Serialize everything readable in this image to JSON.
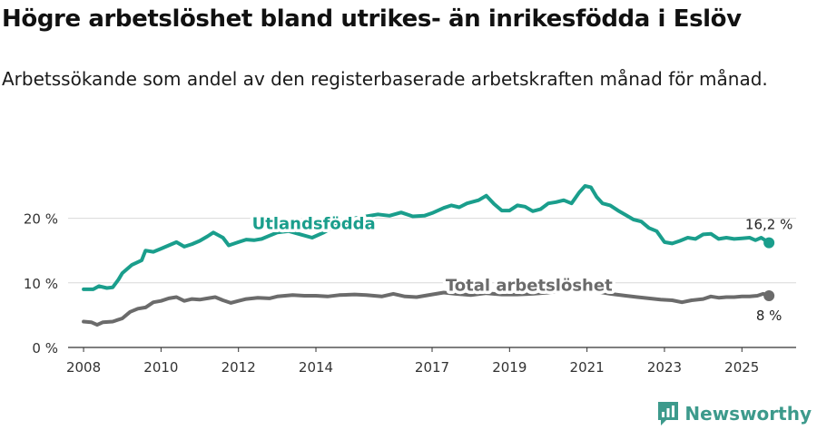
{
  "title": "Högre arbetslöshet bland utrikes- än inrikesfödda i Eslöv",
  "subtitle": "Arbetssökande som andel av den registerbaserade arbetskraften månad för månad.",
  "brand": {
    "name": "Newsworthy",
    "color": "#3d9a8c"
  },
  "chart_data": {
    "type": "line",
    "x_range": [
      2007.6,
      2026.4
    ],
    "ylim": [
      0,
      25
    ],
    "y_ticks": [
      {
        "value": 0,
        "label": "0 %"
      },
      {
        "value": 10,
        "label": "10 %"
      },
      {
        "value": 20,
        "label": "20 %"
      }
    ],
    "x_ticks": [
      {
        "value": 2008,
        "label": "2008"
      },
      {
        "value": 2010,
        "label": "2010"
      },
      {
        "value": 2012,
        "label": "2012"
      },
      {
        "value": 2014,
        "label": "2014"
      },
      {
        "value": 2017,
        "label": "2017"
      },
      {
        "value": 2019,
        "label": "2019"
      },
      {
        "value": 2021,
        "label": "2021"
      },
      {
        "value": 2023,
        "label": "2023"
      },
      {
        "value": 2025,
        "label": "2025"
      }
    ],
    "grid": true,
    "series": [
      {
        "name": "Utlandsfödda",
        "color": "#1a9e8c",
        "end_label": "16,2 %",
        "points": [
          [
            2008.0,
            9.0
          ],
          [
            2008.25,
            9.0
          ],
          [
            2008.4,
            9.5
          ],
          [
            2008.6,
            9.2
          ],
          [
            2008.75,
            9.3
          ],
          [
            2008.9,
            10.5
          ],
          [
            2009.0,
            11.5
          ],
          [
            2009.25,
            12.8
          ],
          [
            2009.5,
            13.5
          ],
          [
            2009.6,
            15.0
          ],
          [
            2009.8,
            14.8
          ],
          [
            2010.0,
            15.3
          ],
          [
            2010.2,
            15.8
          ],
          [
            2010.4,
            16.3
          ],
          [
            2010.6,
            15.6
          ],
          [
            2010.8,
            16.0
          ],
          [
            2011.0,
            16.5
          ],
          [
            2011.2,
            17.2
          ],
          [
            2011.35,
            17.8
          ],
          [
            2011.6,
            17.0
          ],
          [
            2011.75,
            15.8
          ],
          [
            2012.0,
            16.3
          ],
          [
            2012.2,
            16.7
          ],
          [
            2012.4,
            16.6
          ],
          [
            2012.6,
            16.8
          ],
          [
            2012.8,
            17.3
          ],
          [
            2013.0,
            17.8
          ],
          [
            2013.3,
            18.0
          ],
          [
            2013.6,
            17.5
          ],
          [
            2013.9,
            17.0
          ],
          [
            2014.2,
            17.8
          ],
          [
            2014.5,
            18.8
          ],
          [
            2014.8,
            19.3
          ],
          [
            2015.0,
            20.0
          ],
          [
            2015.3,
            20.3
          ],
          [
            2015.6,
            20.6
          ],
          [
            2015.9,
            20.4
          ],
          [
            2016.2,
            20.9
          ],
          [
            2016.5,
            20.3
          ],
          [
            2016.8,
            20.4
          ],
          [
            2017.0,
            20.8
          ],
          [
            2017.3,
            21.6
          ],
          [
            2017.5,
            22.0
          ],
          [
            2017.7,
            21.7
          ],
          [
            2017.9,
            22.3
          ],
          [
            2018.2,
            22.8
          ],
          [
            2018.4,
            23.5
          ],
          [
            2018.6,
            22.2
          ],
          [
            2018.8,
            21.2
          ],
          [
            2019.0,
            21.2
          ],
          [
            2019.2,
            22.0
          ],
          [
            2019.4,
            21.8
          ],
          [
            2019.6,
            21.1
          ],
          [
            2019.8,
            21.4
          ],
          [
            2020.0,
            22.3
          ],
          [
            2020.2,
            22.5
          ],
          [
            2020.4,
            22.8
          ],
          [
            2020.6,
            22.3
          ],
          [
            2020.8,
            24.0
          ],
          [
            2020.95,
            25.0
          ],
          [
            2021.1,
            24.8
          ],
          [
            2021.25,
            23.3
          ],
          [
            2021.4,
            22.3
          ],
          [
            2021.6,
            22.0
          ],
          [
            2021.8,
            21.2
          ],
          [
            2022.0,
            20.5
          ],
          [
            2022.2,
            19.8
          ],
          [
            2022.4,
            19.5
          ],
          [
            2022.6,
            18.5
          ],
          [
            2022.8,
            18.0
          ],
          [
            2023.0,
            16.3
          ],
          [
            2023.2,
            16.1
          ],
          [
            2023.4,
            16.5
          ],
          [
            2023.6,
            17.0
          ],
          [
            2023.8,
            16.8
          ],
          [
            2024.0,
            17.5
          ],
          [
            2024.2,
            17.6
          ],
          [
            2024.4,
            16.8
          ],
          [
            2024.6,
            17.0
          ],
          [
            2024.8,
            16.8
          ],
          [
            2025.0,
            16.9
          ],
          [
            2025.2,
            17.0
          ],
          [
            2025.35,
            16.6
          ],
          [
            2025.5,
            17.0
          ],
          [
            2025.7,
            16.2
          ]
        ]
      },
      {
        "name": "Total arbetslöshet",
        "color": "#6b6b6b",
        "end_label": "8 %",
        "points": [
          [
            2008.0,
            4.0
          ],
          [
            2008.2,
            3.9
          ],
          [
            2008.35,
            3.5
          ],
          [
            2008.5,
            3.9
          ],
          [
            2008.75,
            4.0
          ],
          [
            2009.0,
            4.5
          ],
          [
            2009.2,
            5.5
          ],
          [
            2009.4,
            6.0
          ],
          [
            2009.6,
            6.2
          ],
          [
            2009.8,
            7.0
          ],
          [
            2010.0,
            7.2
          ],
          [
            2010.2,
            7.6
          ],
          [
            2010.4,
            7.8
          ],
          [
            2010.6,
            7.2
          ],
          [
            2010.8,
            7.5
          ],
          [
            2011.0,
            7.4
          ],
          [
            2011.2,
            7.6
          ],
          [
            2011.4,
            7.8
          ],
          [
            2011.6,
            7.3
          ],
          [
            2011.8,
            6.9
          ],
          [
            2012.0,
            7.2
          ],
          [
            2012.2,
            7.5
          ],
          [
            2012.5,
            7.7
          ],
          [
            2012.8,
            7.6
          ],
          [
            2013.0,
            7.9
          ],
          [
            2013.4,
            8.1
          ],
          [
            2013.7,
            8.0
          ],
          [
            2014.0,
            8.0
          ],
          [
            2014.3,
            7.9
          ],
          [
            2014.6,
            8.1
          ],
          [
            2015.0,
            8.2
          ],
          [
            2015.3,
            8.1
          ],
          [
            2015.7,
            7.9
          ],
          [
            2016.0,
            8.3
          ],
          [
            2016.3,
            7.9
          ],
          [
            2016.6,
            7.8
          ],
          [
            2017.0,
            8.2
          ],
          [
            2017.3,
            8.5
          ],
          [
            2017.6,
            8.3
          ],
          [
            2018.0,
            8.1
          ],
          [
            2018.4,
            8.4
          ],
          [
            2018.8,
            8.2
          ],
          [
            2019.2,
            8.2
          ],
          [
            2019.6,
            8.3
          ],
          [
            2020.0,
            8.5
          ],
          [
            2020.4,
            8.8
          ],
          [
            2020.8,
            8.9
          ],
          [
            2021.0,
            9.0
          ],
          [
            2021.3,
            8.6
          ],
          [
            2021.6,
            8.3
          ],
          [
            2022.0,
            8.0
          ],
          [
            2022.3,
            7.8
          ],
          [
            2022.6,
            7.6
          ],
          [
            2022.9,
            7.4
          ],
          [
            2023.2,
            7.3
          ],
          [
            2023.45,
            7.0
          ],
          [
            2023.7,
            7.3
          ],
          [
            2024.0,
            7.5
          ],
          [
            2024.2,
            7.9
          ],
          [
            2024.4,
            7.7
          ],
          [
            2024.6,
            7.8
          ],
          [
            2024.8,
            7.8
          ],
          [
            2025.0,
            7.9
          ],
          [
            2025.2,
            7.9
          ],
          [
            2025.4,
            8.0
          ],
          [
            2025.55,
            8.3
          ],
          [
            2025.7,
            8.0
          ]
        ]
      }
    ],
    "annotations": [
      {
        "text": "Utlandsfödda",
        "series": "Utlandsfödda",
        "at_x": 2012.35,
        "at_y": 18.3,
        "color": "#1a9e8c"
      },
      {
        "text": "Total arbetslöshet",
        "series": "Total arbetslöshet",
        "at_x": 2017.35,
        "at_y": 8.8,
        "color": "#6b6b6b"
      }
    ]
  }
}
